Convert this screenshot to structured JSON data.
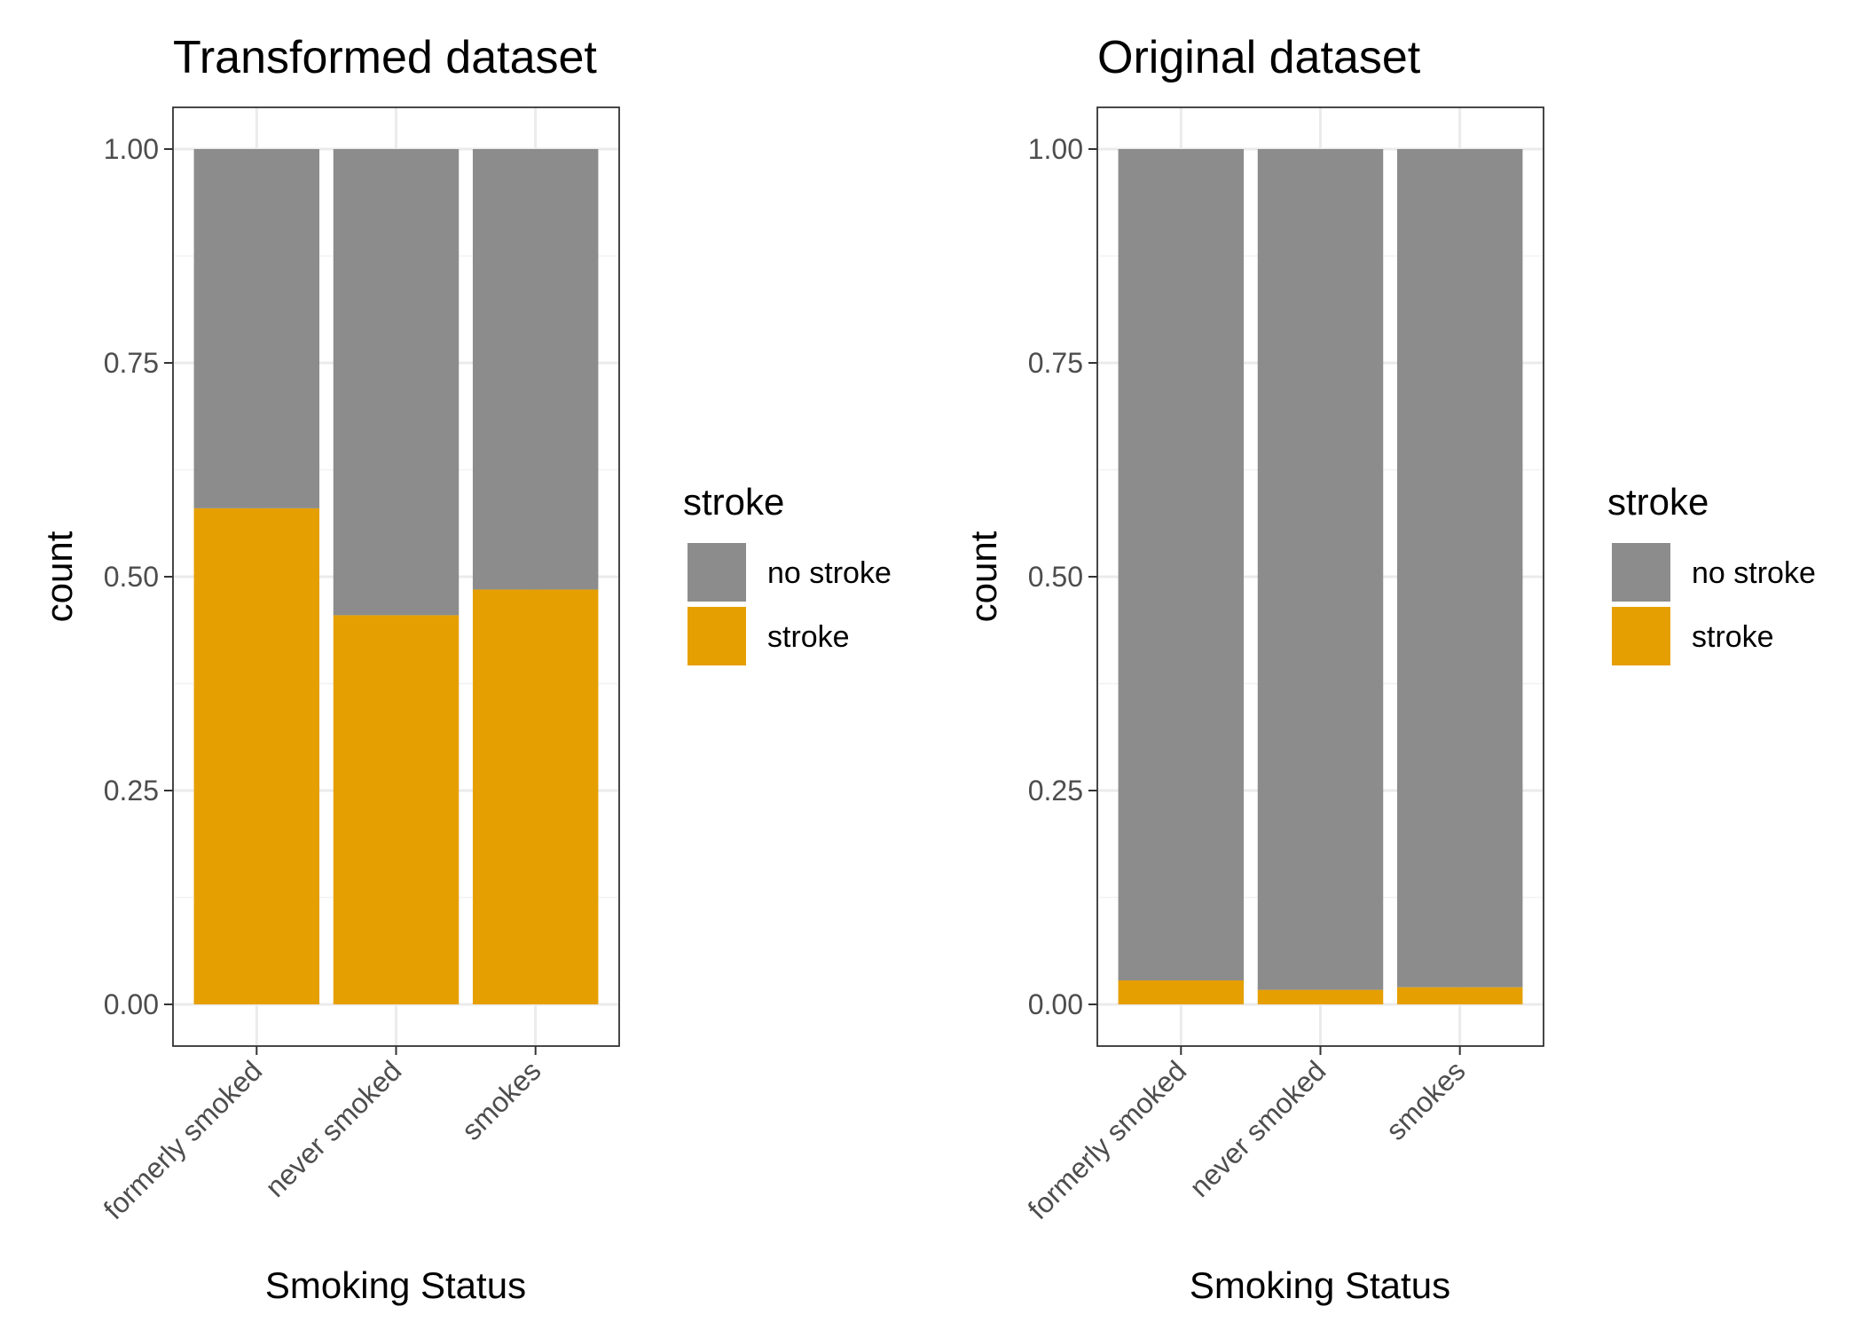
{
  "chart_data": [
    {
      "type": "bar",
      "stacked": true,
      "title": "Transformed dataset",
      "xlabel": "Smoking Status",
      "ylabel": "count",
      "ylim": [
        0,
        1
      ],
      "yticks": [
        "0.00",
        "0.25",
        "0.50",
        "0.75",
        "1.00"
      ],
      "ytick_values": [
        0,
        0.25,
        0.5,
        0.75,
        1
      ],
      "grid": true,
      "categories": [
        "formerly smoked",
        "never smoked",
        "smokes"
      ],
      "series": [
        {
          "name": "stroke",
          "color": "#E69F00",
          "values": [
            0.58,
            0.455,
            0.485
          ]
        },
        {
          "name": "no stroke",
          "color": "#8C8C8C",
          "values": [
            0.42,
            0.545,
            0.515
          ]
        }
      ],
      "legend": {
        "title": "stroke",
        "position": "right",
        "entries": [
          {
            "label": "no stroke",
            "color": "#8C8C8C"
          },
          {
            "label": "stroke",
            "color": "#E69F00"
          }
        ]
      }
    },
    {
      "type": "bar",
      "stacked": true,
      "title": "Original dataset",
      "xlabel": "Smoking Status",
      "ylabel": "count",
      "ylim": [
        0,
        1
      ],
      "yticks": [
        "0.00",
        "0.25",
        "0.50",
        "0.75",
        "1.00"
      ],
      "ytick_values": [
        0,
        0.25,
        0.5,
        0.75,
        1
      ],
      "grid": true,
      "categories": [
        "formerly smoked",
        "never smoked",
        "smokes"
      ],
      "series": [
        {
          "name": "stroke",
          "color": "#E69F00",
          "values": [
            0.028,
            0.017,
            0.02
          ]
        },
        {
          "name": "no stroke",
          "color": "#8C8C8C",
          "values": [
            0.972,
            0.983,
            0.98
          ]
        }
      ],
      "legend": {
        "title": "stroke",
        "position": "right",
        "entries": [
          {
            "label": "no stroke",
            "color": "#8C8C8C"
          },
          {
            "label": "stroke",
            "color": "#E69F00"
          }
        ]
      }
    }
  ]
}
